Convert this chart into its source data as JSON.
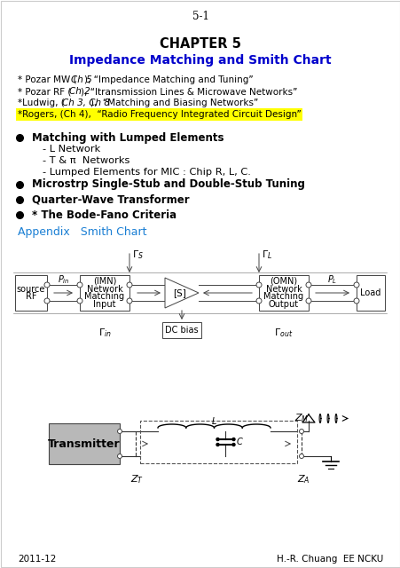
{
  "page_num": "5-1",
  "chapter": "CHAPTER 5",
  "subtitle": "Impedance Matching and Smith Chart",
  "ref1": "* Pozar MW (",
  "ref1i": "Ch 5",
  "ref1e": "), “Impedance Matching and Tuning”",
  "ref2": "* Pozar RF (",
  "ref2i": "Ch 2",
  "ref2e": "), “Itransmission Lines & Microwave Networks”",
  "ref3": "*Ludwig, (",
  "ref3i": "Ch 3, Ch 8",
  "ref3e": "),  “Matching and Biasing Networks”",
  "ref4": "*Rogers, (",
  "ref4i": "Ch 4",
  "ref4e": "),  “Radio Frequency Integrated Circuit Design”",
  "bullet1": "Matching with Lumped Elements",
  "sub1a": "- L Network",
  "sub1b": "- T & π  Networks",
  "sub1c": "- Lumped Elements for MIC : Chip R, L, C.",
  "bullet2": "Microstrp Single-Stub and Double-Stub Tuning",
  "bullet3": "Quarter-Wave Transformer",
  "bullet4": "* The Bode-Fano Criteria",
  "appendix_text": "Appendix   Smith Chart",
  "footer_left": "2011-12",
  "footer_right": "H.-R. Chuang  EE NCKU",
  "bg_color": "#ffffff",
  "text_color": "#000000",
  "blue_ref": "#0000bb",
  "title_blue": "#0000cc",
  "appendix_blue": "#1a7fd4",
  "highlight_yellow": "#ffff00",
  "gray_fill": "#b8b8b8"
}
